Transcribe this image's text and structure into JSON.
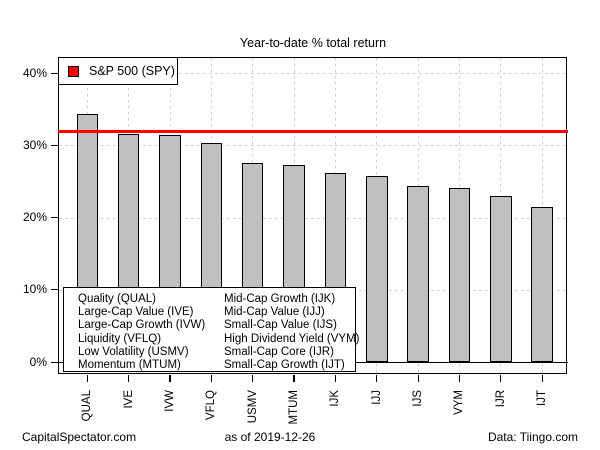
{
  "title": "Year-to-date % total return",
  "legend": {
    "label": "S&P 500 (SPY)",
    "marker_color": "#FF0000"
  },
  "factor_key": {
    "col1": [
      "Quality (QUAL)",
      "Large-Cap Value (IVE)",
      "Large-Cap Growth (IVW)",
      "Liquidity (VFLQ)",
      "Low Volatility (USMV)",
      "Momentum (MTUM)"
    ],
    "col2": [
      "Mid-Cap Growth (IJK)",
      "Mid-Cap Value (IJJ)",
      "Small-Cap Value (IJS)",
      "High Dividend Yield (VYM)",
      "Small-Cap Core (IJR)",
      "Small-Cap Growth (IJT)"
    ]
  },
  "footer": {
    "left": "CapitalSpectator.com",
    "center": "as of  2019-12-26",
    "right": "Data: Tiingo.com"
  },
  "chart_data": {
    "type": "bar",
    "title": "Year-to-date % total return",
    "categories": [
      "QUAL",
      "IVE",
      "IVW",
      "VFLQ",
      "USMV",
      "MTUM",
      "IJK",
      "IJJ",
      "IJS",
      "VYM",
      "IJR",
      "IJT"
    ],
    "values": [
      34.3,
      31.6,
      31.4,
      30.3,
      27.6,
      27.3,
      26.2,
      25.8,
      24.3,
      24.1,
      23.0,
      21.4
    ],
    "reference_line": {
      "label": "S&P 500 (SPY)",
      "value": 31.9,
      "color": "#FF0000"
    },
    "xlabel": "",
    "ylabel": "",
    "ytick_labels": [
      "0%",
      "10%",
      "20%",
      "30%",
      "40%"
    ],
    "ytick_values": [
      0,
      10,
      20,
      30,
      40
    ],
    "ylim": [
      0,
      42.1
    ],
    "grid": true,
    "legend_position": "top-left",
    "bar_color": "#C0C0C0",
    "bar_border_color": "#000000",
    "grid_color": "#CCCCCC"
  }
}
